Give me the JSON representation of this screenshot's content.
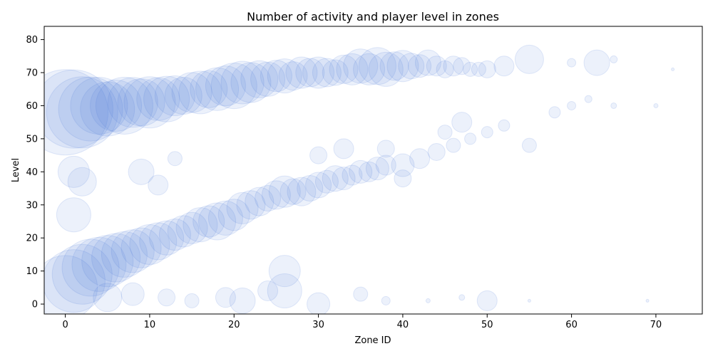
{
  "chart_data": {
    "type": "scatter",
    "title": "Number of activity and player level in zones",
    "xlabel": "Zone ID",
    "ylabel": "Level",
    "xlim": [
      -2.5,
      75.5
    ],
    "ylim": [
      -3,
      84
    ],
    "xticks": [
      0,
      10,
      20,
      30,
      40,
      50,
      60,
      70
    ],
    "yticks": [
      0,
      10,
      20,
      30,
      40,
      50,
      60,
      70,
      80
    ],
    "grid": false,
    "marker_color": "#4472d4",
    "marker_alpha": 0.1,
    "size_encodes": "number of activity",
    "points": [
      {
        "x": 0,
        "y": 58,
        "s": 60
      },
      {
        "x": 1,
        "y": 59,
        "s": 55
      },
      {
        "x": 2,
        "y": 58,
        "s": 50
      },
      {
        "x": 3,
        "y": 59,
        "s": 45
      },
      {
        "x": 4,
        "y": 60,
        "s": 40
      },
      {
        "x": 5,
        "y": 59,
        "s": 38
      },
      {
        "x": 6,
        "y": 60,
        "s": 36
      },
      {
        "x": 7,
        "y": 60,
        "s": 40
      },
      {
        "x": 8,
        "y": 61,
        "s": 35
      },
      {
        "x": 9,
        "y": 61,
        "s": 33
      },
      {
        "x": 10,
        "y": 61,
        "s": 36
      },
      {
        "x": 11,
        "y": 62,
        "s": 30
      },
      {
        "x": 12,
        "y": 62,
        "s": 32
      },
      {
        "x": 13,
        "y": 63,
        "s": 28
      },
      {
        "x": 14,
        "y": 63,
        "s": 26
      },
      {
        "x": 15,
        "y": 64,
        "s": 28
      },
      {
        "x": 16,
        "y": 64,
        "s": 30
      },
      {
        "x": 17,
        "y": 65,
        "s": 26
      },
      {
        "x": 18,
        "y": 65,
        "s": 30
      },
      {
        "x": 19,
        "y": 66,
        "s": 28
      },
      {
        "x": 20,
        "y": 66,
        "s": 32
      },
      {
        "x": 21,
        "y": 67,
        "s": 30
      },
      {
        "x": 22,
        "y": 67,
        "s": 28
      },
      {
        "x": 23,
        "y": 68,
        "s": 26
      },
      {
        "x": 24,
        "y": 68,
        "s": 24
      },
      {
        "x": 25,
        "y": 69,
        "s": 22
      },
      {
        "x": 26,
        "y": 69,
        "s": 24
      },
      {
        "x": 27,
        "y": 69,
        "s": 20
      },
      {
        "x": 28,
        "y": 70,
        "s": 22
      },
      {
        "x": 29,
        "y": 70,
        "s": 20
      },
      {
        "x": 30,
        "y": 70,
        "s": 22
      },
      {
        "x": 31,
        "y": 70,
        "s": 20
      },
      {
        "x": 32,
        "y": 70,
        "s": 18
      },
      {
        "x": 33,
        "y": 71,
        "s": 20
      },
      {
        "x": 34,
        "y": 71,
        "s": 22
      },
      {
        "x": 35,
        "y": 72,
        "s": 24
      },
      {
        "x": 36,
        "y": 71,
        "s": 22
      },
      {
        "x": 37,
        "y": 72,
        "s": 26
      },
      {
        "x": 38,
        "y": 71,
        "s": 24
      },
      {
        "x": 39,
        "y": 72,
        "s": 20
      },
      {
        "x": 40,
        "y": 72,
        "s": 22
      },
      {
        "x": 41,
        "y": 72,
        "s": 18
      },
      {
        "x": 42,
        "y": 72,
        "s": 16
      },
      {
        "x": 43,
        "y": 73,
        "s": 18
      },
      {
        "x": 44,
        "y": 72,
        "s": 14
      },
      {
        "x": 45,
        "y": 71,
        "s": 12
      },
      {
        "x": 46,
        "y": 72,
        "s": 14
      },
      {
        "x": 47,
        "y": 72,
        "s": 12
      },
      {
        "x": 48,
        "y": 71,
        "s": 10
      },
      {
        "x": 49,
        "y": 71,
        "s": 10
      },
      {
        "x": 50,
        "y": 71,
        "s": 12
      },
      {
        "x": 52,
        "y": 72,
        "s": 14
      },
      {
        "x": 55,
        "y": 74,
        "s": 20
      },
      {
        "x": 60,
        "y": 73,
        "s": 6
      },
      {
        "x": 63,
        "y": 73,
        "s": 18
      },
      {
        "x": 65,
        "y": 74,
        "s": 5
      },
      {
        "x": 72,
        "y": 71,
        "s": 2
      },
      {
        "x": 0,
        "y": 5,
        "s": 45
      },
      {
        "x": 1,
        "y": 7,
        "s": 44
      },
      {
        "x": 2,
        "y": 9,
        "s": 42
      },
      {
        "x": 3,
        "y": 11,
        "s": 40
      },
      {
        "x": 4,
        "y": 12,
        "s": 38
      },
      {
        "x": 5,
        "y": 13,
        "s": 36
      },
      {
        "x": 6,
        "y": 14,
        "s": 34
      },
      {
        "x": 7,
        "y": 15,
        "s": 32
      },
      {
        "x": 8,
        "y": 16,
        "s": 30
      },
      {
        "x": 9,
        "y": 17,
        "s": 28
      },
      {
        "x": 10,
        "y": 18,
        "s": 28
      },
      {
        "x": 11,
        "y": 19,
        "s": 26
      },
      {
        "x": 12,
        "y": 20,
        "s": 24
      },
      {
        "x": 13,
        "y": 21,
        "s": 22
      },
      {
        "x": 14,
        "y": 22,
        "s": 22
      },
      {
        "x": 15,
        "y": 23,
        "s": 22
      },
      {
        "x": 16,
        "y": 24,
        "s": 24
      },
      {
        "x": 17,
        "y": 25,
        "s": 22
      },
      {
        "x": 18,
        "y": 25,
        "s": 26
      },
      {
        "x": 19,
        "y": 26,
        "s": 24
      },
      {
        "x": 20,
        "y": 27,
        "s": 22
      },
      {
        "x": 21,
        "y": 29,
        "s": 22
      },
      {
        "x": 22,
        "y": 30,
        "s": 20
      },
      {
        "x": 23,
        "y": 31,
        "s": 20
      },
      {
        "x": 24,
        "y": 32,
        "s": 18
      },
      {
        "x": 25,
        "y": 33,
        "s": 20
      },
      {
        "x": 26,
        "y": 34,
        "s": 22
      },
      {
        "x": 27,
        "y": 34,
        "s": 18
      },
      {
        "x": 28,
        "y": 34,
        "s": 20
      },
      {
        "x": 29,
        "y": 35,
        "s": 18
      },
      {
        "x": 30,
        "y": 36,
        "s": 18
      },
      {
        "x": 31,
        "y": 37,
        "s": 16
      },
      {
        "x": 32,
        "y": 38,
        "s": 18
      },
      {
        "x": 33,
        "y": 38,
        "s": 16
      },
      {
        "x": 34,
        "y": 39,
        "s": 14
      },
      {
        "x": 35,
        "y": 40,
        "s": 16
      },
      {
        "x": 36,
        "y": 40,
        "s": 14
      },
      {
        "x": 37,
        "y": 41,
        "s": 16
      },
      {
        "x": 38,
        "y": 42,
        "s": 14
      },
      {
        "x": 40,
        "y": 42,
        "s": 16
      },
      {
        "x": 42,
        "y": 44,
        "s": 14
      },
      {
        "x": 44,
        "y": 46,
        "s": 12
      },
      {
        "x": 46,
        "y": 48,
        "s": 10
      },
      {
        "x": 48,
        "y": 50,
        "s": 8
      },
      {
        "x": 50,
        "y": 52,
        "s": 8
      },
      {
        "x": 52,
        "y": 54,
        "s": 8
      },
      {
        "x": 55,
        "y": 48,
        "s": 10
      },
      {
        "x": 58,
        "y": 58,
        "s": 8
      },
      {
        "x": 60,
        "y": 60,
        "s": 6
      },
      {
        "x": 62,
        "y": 62,
        "s": 5
      },
      {
        "x": 65,
        "y": 60,
        "s": 4
      },
      {
        "x": 70,
        "y": 60,
        "s": 3
      },
      {
        "x": 1,
        "y": 40,
        "s": 22
      },
      {
        "x": 1,
        "y": 27,
        "s": 24
      },
      {
        "x": 2,
        "y": 37,
        "s": 20
      },
      {
        "x": 9,
        "y": 40,
        "s": 18
      },
      {
        "x": 11,
        "y": 36,
        "s": 14
      },
      {
        "x": 13,
        "y": 44,
        "s": 10
      },
      {
        "x": 30,
        "y": 45,
        "s": 12
      },
      {
        "x": 33,
        "y": 47,
        "s": 14
      },
      {
        "x": 38,
        "y": 47,
        "s": 12
      },
      {
        "x": 40,
        "y": 38,
        "s": 12
      },
      {
        "x": 47,
        "y": 55,
        "s": 14
      },
      {
        "x": 45,
        "y": 52,
        "s": 10
      },
      {
        "x": 26,
        "y": 10,
        "s": 22
      },
      {
        "x": 26,
        "y": 4,
        "s": 24
      },
      {
        "x": 24,
        "y": 4,
        "s": 14
      },
      {
        "x": 21,
        "y": 1,
        "s": 18
      },
      {
        "x": 19,
        "y": 2,
        "s": 14
      },
      {
        "x": 15,
        "y": 1,
        "s": 10
      },
      {
        "x": 12,
        "y": 2,
        "s": 12
      },
      {
        "x": 30,
        "y": 0,
        "s": 16
      },
      {
        "x": 35,
        "y": 3,
        "s": 10
      },
      {
        "x": 38,
        "y": 1,
        "s": 6
      },
      {
        "x": 50,
        "y": 1,
        "s": 14
      },
      {
        "x": 47,
        "y": 2,
        "s": 4
      },
      {
        "x": 43,
        "y": 1,
        "s": 3
      },
      {
        "x": 55,
        "y": 1,
        "s": 2
      },
      {
        "x": 69,
        "y": 1,
        "s": 2
      },
      {
        "x": 8,
        "y": 3,
        "s": 16
      },
      {
        "x": 5,
        "y": 2,
        "s": 20
      }
    ]
  }
}
